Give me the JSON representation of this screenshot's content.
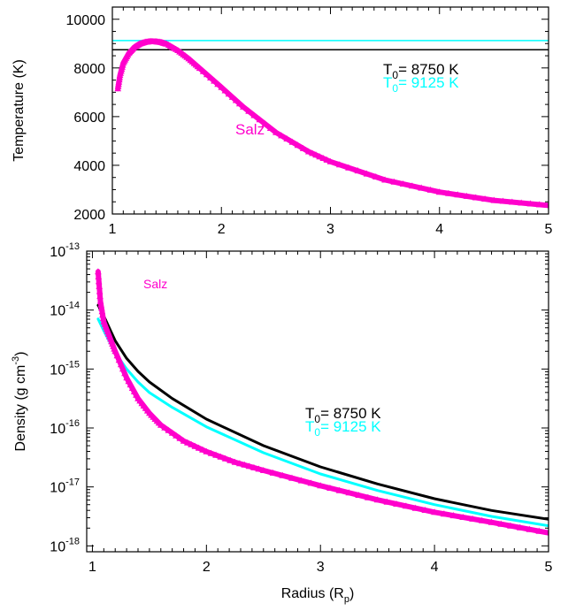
{
  "chart_data": [
    {
      "type": "line",
      "xlim": [
        1,
        5
      ],
      "ylim": [
        2000,
        10500
      ],
      "yscale": "linear",
      "xticks": [
        "1",
        "2",
        "3",
        "4",
        "5"
      ],
      "yticks": [
        "2000",
        "4000",
        "6000",
        "8000",
        "10000"
      ],
      "ylabel": "Temperature (K)",
      "xlabel": "",
      "grid": false,
      "vline_x": 1,
      "series": [
        {
          "name": "Salz",
          "color": "#ff00cc",
          "x": [
            1.05,
            1.07,
            1.1,
            1.15,
            1.2,
            1.25,
            1.3,
            1.35,
            1.4,
            1.45,
            1.5,
            1.6,
            1.7,
            1.8,
            2.0,
            2.2,
            2.5,
            2.8,
            3.0,
            3.5,
            4.0,
            4.5,
            5.0
          ],
          "y": [
            7150,
            7700,
            8200,
            8600,
            8850,
            8990,
            9060,
            9090,
            9080,
            9050,
            8980,
            8720,
            8380,
            7990,
            7200,
            6400,
            5350,
            4560,
            4150,
            3400,
            2900,
            2560,
            2350
          ]
        },
        {
          "name": "T0= 8750 K",
          "color": "#000000",
          "x": [
            1,
            5
          ],
          "y": [
            8750,
            8750
          ]
        },
        {
          "name": "T0= 9125 K",
          "color": "#00ffff",
          "x": [
            1,
            5
          ],
          "y": [
            9125,
            9125
          ]
        }
      ],
      "annotations": [
        {
          "text": "Salz",
          "color": "#ff00cc"
        }
      ],
      "legend": [
        {
          "text": "T",
          "sub": "0",
          "rest": "= 8750 K",
          "color": "#000000"
        },
        {
          "text": "T",
          "sub": "0",
          "rest": "= 9125 K",
          "color": "#00ffff"
        }
      ]
    },
    {
      "type": "line",
      "xlim": [
        0.95,
        5
      ],
      "ylim": [
        -18.1,
        -13
      ],
      "yscale": "log",
      "xticks": [
        "1",
        "2",
        "3",
        "4",
        "5"
      ],
      "yticks": [
        {
          "base": "10",
          "exp": "-18"
        },
        {
          "base": "10",
          "exp": "-17"
        },
        {
          "base": "10",
          "exp": "-16"
        },
        {
          "base": "10",
          "exp": "-15"
        },
        {
          "base": "10",
          "exp": "-14"
        },
        {
          "base": "10",
          "exp": "-13"
        }
      ],
      "ylabel": {
        "pre": "Density (g cm",
        "sup": "-3",
        "post": ")"
      },
      "xlabel": {
        "pre": "Radius (R",
        "sub": "p",
        "post": ")"
      },
      "grid": false,
      "series": [
        {
          "name": "Salz",
          "color": "#ff00cc",
          "x": [
            1.05,
            1.07,
            1.1,
            1.15,
            1.2,
            1.3,
            1.4,
            1.5,
            1.6,
            1.8,
            2.0,
            2.25,
            2.5,
            3.0,
            3.5,
            4.0,
            4.5,
            5.0
          ],
          "y": [
            -13.35,
            -13.85,
            -14.2,
            -14.45,
            -14.7,
            -15.15,
            -15.5,
            -15.75,
            -15.95,
            -16.22,
            -16.4,
            -16.58,
            -16.72,
            -16.98,
            -17.22,
            -17.43,
            -17.6,
            -17.78
          ]
        },
        {
          "name": "T0= 8750 K",
          "color": "#000000",
          "x": [
            1.05,
            1.1,
            1.2,
            1.3,
            1.4,
            1.5,
            1.7,
            2.0,
            2.5,
            3.0,
            3.5,
            4.0,
            4.5,
            5.0
          ],
          "y": [
            -13.92,
            -14.1,
            -14.52,
            -14.82,
            -15.04,
            -15.22,
            -15.5,
            -15.85,
            -16.3,
            -16.66,
            -16.95,
            -17.2,
            -17.4,
            -17.55
          ]
        },
        {
          "name": "T0= 9125 K",
          "color": "#00ffff",
          "x": [
            1.05,
            1.1,
            1.2,
            1.3,
            1.4,
            1.5,
            1.7,
            2.0,
            2.5,
            3.0,
            3.5,
            4.0,
            4.5,
            5.0
          ],
          "y": [
            -14.15,
            -14.35,
            -14.72,
            -15.0,
            -15.22,
            -15.4,
            -15.65,
            -15.98,
            -16.42,
            -16.78,
            -17.06,
            -17.3,
            -17.5,
            -17.66
          ]
        }
      ],
      "annotations": [
        {
          "text": "Salz",
          "color": "#ff00cc"
        }
      ],
      "legend": [
        {
          "text": "T",
          "sub": "0",
          "rest": "= 8750 K",
          "color": "#000000"
        },
        {
          "text": "T",
          "sub": "0",
          "rest": "= 9125 K",
          "color": "#00ffff"
        }
      ]
    }
  ]
}
